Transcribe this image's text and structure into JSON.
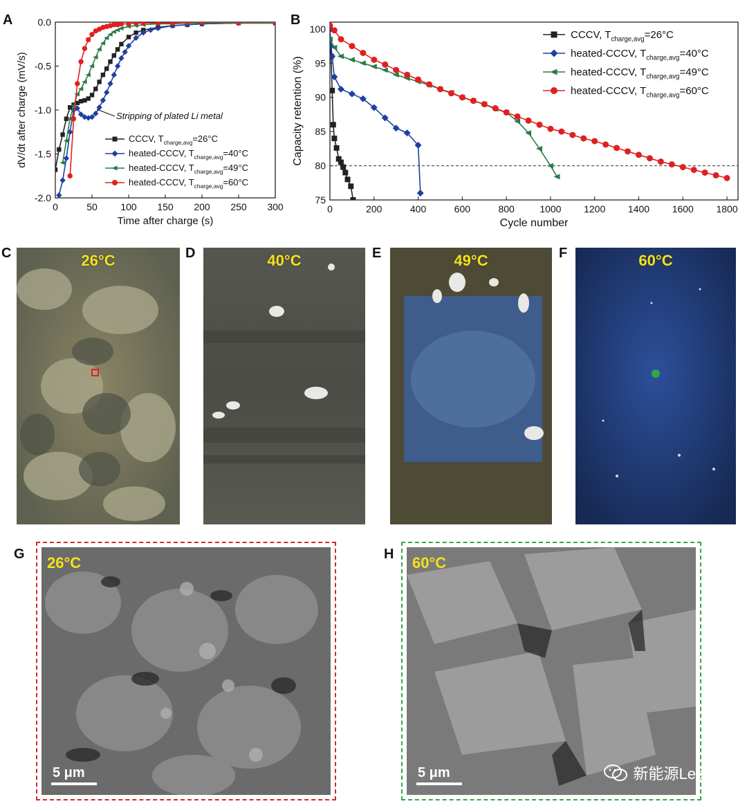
{
  "panels": {
    "A": "A",
    "B": "B",
    "C": "C",
    "D": "D",
    "E": "E",
    "F": "F",
    "G": "G",
    "H": "H"
  },
  "chart_data": [
    {
      "type": "line",
      "panel": "A",
      "xlabel": "Time after charge (s)",
      "ylabel": "dV/dt after charge (mV/s)",
      "xlim": [
        0,
        300
      ],
      "ylim": [
        -2.0,
        0.0
      ],
      "xticks": [
        "0",
        "50",
        "100",
        "150",
        "200",
        "250",
        "300"
      ],
      "yticks": [
        "-2.0",
        "-1.5",
        "-1.0",
        "-0.5",
        "0.0"
      ],
      "annotation": "Stripping of plated Li metal",
      "legend_position": "bottom-right",
      "series": [
        {
          "name": "CCCV, T",
          "sub": "charge,avg",
          "suffix": "=26°C",
          "color": "#222222",
          "marker": "square",
          "x": [
            0,
            5,
            10,
            15,
            20,
            25,
            30,
            35,
            40,
            45,
            50,
            55,
            60,
            65,
            70,
            75,
            80,
            85,
            90,
            100,
            110,
            120,
            140,
            160,
            180,
            200,
            250,
            300
          ],
          "y": [
            -1.68,
            -1.45,
            -1.28,
            -1.1,
            -0.97,
            -0.94,
            -0.92,
            -0.9,
            -0.89,
            -0.87,
            -0.83,
            -0.76,
            -0.68,
            -0.6,
            -0.53,
            -0.45,
            -0.38,
            -0.31,
            -0.25,
            -0.17,
            -0.12,
            -0.09,
            -0.06,
            -0.04,
            -0.03,
            -0.02,
            -0.01,
            -0.01
          ]
        },
        {
          "name": "heated-CCCV, T",
          "sub": "charge,avg",
          "suffix": "=40°C",
          "color": "#1f3fa0",
          "marker": "diamond",
          "x": [
            5,
            10,
            15,
            20,
            25,
            30,
            35,
            40,
            45,
            50,
            55,
            60,
            65,
            70,
            75,
            80,
            85,
            90,
            95,
            100,
            110,
            120,
            130,
            140,
            160,
            180,
            200,
            250,
            300
          ],
          "y": [
            -1.97,
            -1.8,
            -1.55,
            -1.25,
            -1.0,
            -0.98,
            -1.05,
            -1.08,
            -1.09,
            -1.08,
            -1.04,
            -0.97,
            -0.89,
            -0.8,
            -0.7,
            -0.6,
            -0.5,
            -0.41,
            -0.34,
            -0.27,
            -0.18,
            -0.12,
            -0.09,
            -0.07,
            -0.04,
            -0.03,
            -0.02,
            -0.01,
            -0.01
          ]
        },
        {
          "name": "heated-CCCV, T",
          "sub": "charge,avg",
          "suffix": "=49°C",
          "color": "#2a7a4a",
          "marker": "triangle-left",
          "x": [
            10,
            15,
            20,
            25,
            30,
            35,
            40,
            45,
            50,
            55,
            60,
            65,
            70,
            75,
            80,
            85,
            90,
            100,
            110,
            120,
            140,
            160,
            180,
            200,
            250,
            300
          ],
          "y": [
            -1.6,
            -1.35,
            -1.1,
            -0.95,
            -0.82,
            -0.76,
            -0.68,
            -0.6,
            -0.5,
            -0.4,
            -0.31,
            -0.24,
            -0.18,
            -0.14,
            -0.11,
            -0.09,
            -0.07,
            -0.05,
            -0.04,
            -0.03,
            -0.02,
            -0.02,
            -0.01,
            -0.01,
            -0.01,
            -0.01
          ]
        },
        {
          "name": "heated-CCCV, T",
          "sub": "charge,avg",
          "suffix": "=60°C",
          "color": "#e02020",
          "marker": "circle",
          "x": [
            20,
            25,
            30,
            35,
            40,
            45,
            50,
            55,
            60,
            65,
            70,
            75,
            80,
            85,
            90,
            100,
            110,
            120,
            140,
            160,
            180,
            200,
            250,
            300
          ],
          "y": [
            -1.75,
            -1.1,
            -0.7,
            -0.45,
            -0.3,
            -0.2,
            -0.14,
            -0.1,
            -0.08,
            -0.06,
            -0.05,
            -0.04,
            -0.03,
            -0.03,
            -0.02,
            -0.02,
            -0.01,
            -0.01,
            -0.01,
            -0.01,
            0.0,
            0.0,
            0.0,
            0.0
          ]
        }
      ]
    },
    {
      "type": "line",
      "panel": "B",
      "xlabel": "Cycle number",
      "ylabel": "Capacity retention (%)",
      "xlim": [
        0,
        1850
      ],
      "ylim": [
        75,
        101
      ],
      "xticks": [
        "0",
        "200",
        "400",
        "600",
        "800",
        "1000",
        "1200",
        "1400",
        "1600",
        "1800"
      ],
      "yticks": [
        "75",
        "80",
        "85",
        "90",
        "95",
        "100"
      ],
      "reference_line": 80,
      "legend_position": "top-right",
      "series": [
        {
          "name": "CCCV, T",
          "sub": "charge,avg",
          "suffix": "=26°C",
          "color": "#222222",
          "marker": "square",
          "x": [
            0,
            5,
            10,
            15,
            20,
            30,
            40,
            50,
            60,
            70,
            80,
            95,
            105
          ],
          "y": [
            100,
            96,
            91,
            86,
            84,
            82.6,
            81,
            80.5,
            79.8,
            79,
            78,
            77,
            75
          ]
        },
        {
          "name": "heated-CCCV, T",
          "sub": "charge,avg",
          "suffix": "=40°C",
          "color": "#1f3fa0",
          "marker": "diamond",
          "x": [
            0,
            5,
            10,
            20,
            50,
            100,
            150,
            200,
            250,
            300,
            350,
            400,
            410
          ],
          "y": [
            100,
            97.5,
            96,
            93,
            91.2,
            90.5,
            89.8,
            88.5,
            87,
            85.5,
            84.8,
            83,
            76
          ]
        },
        {
          "name": "heated-CCCV, T",
          "sub": "charge,avg",
          "suffix": "=49°C",
          "color": "#2a7a4a",
          "marker": "triangle-left",
          "x": [
            0,
            20,
            50,
            100,
            150,
            200,
            250,
            300,
            350,
            400,
            450,
            500,
            550,
            600,
            650,
            700,
            750,
            800,
            850,
            900,
            950,
            1000,
            1030
          ],
          "y": [
            98.5,
            97.3,
            96,
            95.5,
            95,
            94.5,
            94,
            93.3,
            92.8,
            92.3,
            91.8,
            91.2,
            90.7,
            90,
            89.5,
            89,
            88.3,
            87.8,
            86.5,
            84.8,
            82.5,
            80,
            78.4
          ]
        },
        {
          "name": "heated-CCCV, T",
          "sub": "charge,avg",
          "suffix": "=60°C",
          "color": "#e02020",
          "marker": "circle",
          "x": [
            0,
            20,
            50,
            100,
            150,
            200,
            250,
            300,
            350,
            400,
            450,
            500,
            550,
            600,
            650,
            700,
            750,
            800,
            850,
            900,
            950,
            1000,
            1050,
            1100,
            1150,
            1200,
            1250,
            1300,
            1350,
            1400,
            1450,
            1500,
            1550,
            1600,
            1650,
            1700,
            1750,
            1800
          ],
          "y": [
            100.5,
            99.8,
            98.5,
            97.5,
            96.5,
            95.5,
            94.8,
            94,
            93.3,
            92.6,
            91.9,
            91.2,
            90.6,
            90,
            89.5,
            89,
            88.4,
            87.8,
            87.2,
            86.6,
            86,
            85.4,
            85,
            84.5,
            84,
            83.6,
            83.1,
            82.6,
            82.1,
            81.6,
            81.1,
            80.6,
            80.2,
            79.8,
            79.4,
            79,
            78.6,
            78.2
          ]
        }
      ]
    }
  ],
  "photos": [
    {
      "panel": "C",
      "temp": "26°C"
    },
    {
      "panel": "D",
      "temp": "40°C"
    },
    {
      "panel": "E",
      "temp": "49°C"
    },
    {
      "panel": "F",
      "temp": "60°C"
    }
  ],
  "sem": [
    {
      "panel": "G",
      "temp": "26°C",
      "scale": "5 μm",
      "border": "#d22a2a"
    },
    {
      "panel": "H",
      "temp": "60°C",
      "scale": "5 μm",
      "border": "#2fa84a"
    }
  ],
  "watermark": "新能源Leader"
}
